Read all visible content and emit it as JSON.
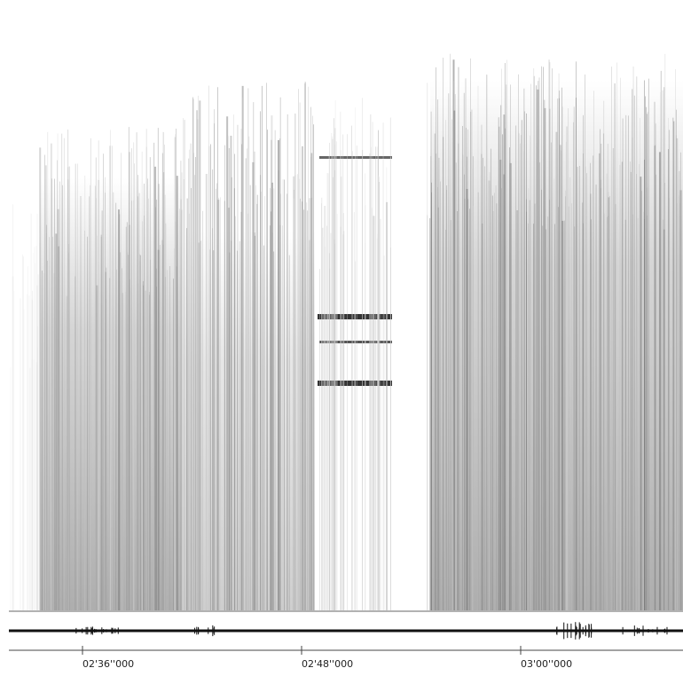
{
  "timeline": {
    "labels": [
      "02'36''000",
      "02'48''000",
      "03'00''000"
    ]
  }
}
